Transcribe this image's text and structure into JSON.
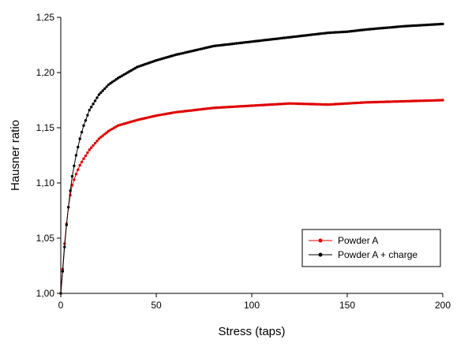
{
  "chart_data": {
    "type": "line",
    "title": "",
    "xlabel": "Stress (taps)",
    "ylabel": "Hausner ratio",
    "xlim": [
      0,
      200
    ],
    "ylim": [
      1.0,
      1.25
    ],
    "xticks": [
      "0",
      "50",
      "100",
      "150",
      "200"
    ],
    "yticks": [
      "1,00",
      "1,05",
      "1,10",
      "1,15",
      "1,20",
      "1,25"
    ],
    "grid": false,
    "legend_position": "bottom-right",
    "x": [
      0,
      1,
      2,
      3,
      4,
      5,
      6,
      8,
      10,
      12,
      15,
      20,
      25,
      30,
      40,
      50,
      60,
      70,
      80,
      100,
      120,
      140,
      150,
      160,
      180,
      200
    ],
    "series": [
      {
        "name": "Powder A",
        "color": "#e00000",
        "values": [
          1.0,
          1.022,
          1.045,
          1.063,
          1.078,
          1.089,
          1.098,
          1.108,
          1.116,
          1.122,
          1.13,
          1.14,
          1.147,
          1.152,
          1.157,
          1.161,
          1.164,
          1.166,
          1.168,
          1.17,
          1.172,
          1.171,
          1.172,
          1.173,
          1.174,
          1.175
        ]
      },
      {
        "name": "Powder A + charge",
        "color": "#000000",
        "values": [
          1.0,
          1.02,
          1.042,
          1.062,
          1.078,
          1.093,
          1.106,
          1.125,
          1.14,
          1.152,
          1.166,
          1.18,
          1.189,
          1.195,
          1.205,
          1.211,
          1.216,
          1.22,
          1.224,
          1.228,
          1.232,
          1.236,
          1.237,
          1.239,
          1.242,
          1.244
        ]
      }
    ]
  }
}
